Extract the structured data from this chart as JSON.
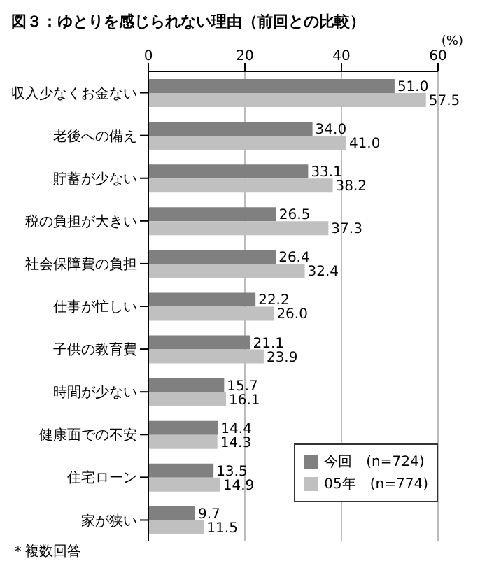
{
  "chart_data": {
    "type": "bar",
    "orientation": "horizontal",
    "title": "図３：ゆとりを感じられない理由（前回との比較）",
    "xlabel": "(%)",
    "categories": [
      "収入少なくお金ない",
      "老後への備え",
      "貯蓄が少ない",
      "税の負担が大きい",
      "社会保障費の負担",
      "仕事が忙しい",
      "子供の教育費",
      "時間が少ない",
      "健康面での不安",
      "住宅ローン",
      "家が狭い"
    ],
    "series": [
      {
        "name": "今回　(n=724)",
        "color": "#808080",
        "values": [
          51.0,
          34.0,
          33.1,
          26.5,
          26.4,
          22.2,
          21.1,
          15.7,
          14.4,
          13.5,
          9.7
        ],
        "value_labels": [
          "51.0",
          "34.0",
          "33.1",
          "26.5",
          "26.4",
          "22.2",
          "21.1",
          "15.7",
          "14.4",
          "13.5",
          "9.7"
        ]
      },
      {
        "name": "05年　(n=774)",
        "color": "#c0c0c0",
        "values": [
          57.5,
          41.0,
          38.2,
          37.3,
          32.4,
          26.0,
          23.9,
          16.1,
          14.3,
          14.9,
          11.5
        ],
        "value_labels": [
          "57.5",
          "41.0",
          "38.2",
          "37.3",
          "32.4",
          "26.0",
          "23.9",
          "16.1",
          "14.3",
          "14.9",
          "11.5"
        ]
      }
    ],
    "xlim": [
      0,
      60
    ],
    "xticks": [
      0,
      20,
      40,
      60
    ],
    "grid": "x",
    "legend": "bottom right",
    "annotations": [
      "＊複数回答"
    ]
  }
}
